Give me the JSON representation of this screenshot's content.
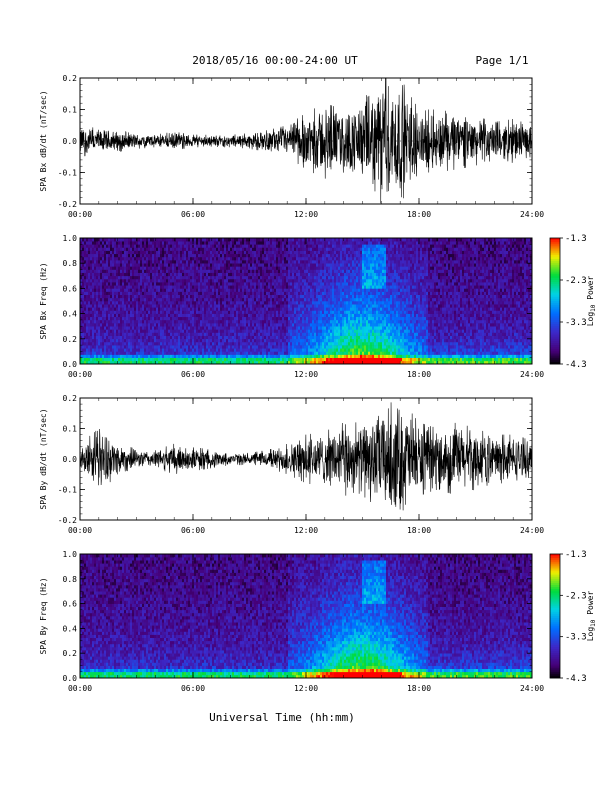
{
  "page": {
    "title": "2018/05/16  00:00-24:00 UT",
    "page_label": "Page 1/1",
    "xlabel": "Universal Time (hh:mm)"
  },
  "colorbar": {
    "label_base": "Log",
    "label_sub": "10",
    "label_tail": " Power",
    "ticks": [
      "-1.3",
      "-2.3",
      "-3.3",
      "-4.3"
    ],
    "range": [
      -4.3,
      -1.3
    ]
  },
  "chart_data": [
    {
      "type": "line",
      "ylabel": "SPA Bx dB/dt (nT/sec)",
      "xticks": [
        "00:00",
        "06:00",
        "12:00",
        "18:00",
        "24:00"
      ],
      "yticks": [
        "0.2",
        "0.1",
        "0.0",
        "-0.1",
        "-0.2"
      ],
      "xlim": [
        0,
        24
      ],
      "ylim": [
        -0.2,
        0.2
      ],
      "series": [
        {
          "x": [
            0,
            1,
            2,
            3,
            4,
            5,
            6,
            7,
            8,
            9,
            10,
            11,
            12,
            13,
            14,
            15,
            16,
            17,
            18,
            19,
            20,
            21,
            22,
            23,
            24
          ],
          "envelope": [
            0.05,
            0.04,
            0.035,
            0.025,
            0.02,
            0.03,
            0.02,
            0.02,
            0.02,
            0.025,
            0.035,
            0.05,
            0.09,
            0.12,
            0.1,
            0.13,
            0.2,
            0.2,
            0.1,
            0.1,
            0.09,
            0.08,
            0.06,
            0.07,
            0.05
          ]
        }
      ]
    },
    {
      "type": "heatmap",
      "ylabel": "SPA Bx Freq (Hz)",
      "xticks": [
        "00:00",
        "06:00",
        "12:00",
        "18:00",
        "24:00"
      ],
      "yticks": [
        "1.0",
        "0.8",
        "0.6",
        "0.4",
        "0.2",
        "0.0"
      ],
      "xlim": [
        0,
        24
      ],
      "ylim": [
        0,
        1.0
      ],
      "zlim": [
        -4.3,
        -1.3
      ]
    },
    {
      "type": "line",
      "ylabel": "SPA By dB/dt (nT/sec)",
      "xticks": [
        "00:00",
        "06:00",
        "12:00",
        "18:00",
        "24:00"
      ],
      "yticks": [
        "0.2",
        "0.1",
        "0.0",
        "-0.1",
        "-0.2"
      ],
      "xlim": [
        0,
        24
      ],
      "ylim": [
        -0.2,
        0.2
      ],
      "series": [
        {
          "x": [
            0,
            1,
            2,
            3,
            4,
            5,
            6,
            7,
            8,
            9,
            10,
            11,
            12,
            13,
            14,
            15,
            16,
            17,
            18,
            19,
            20,
            21,
            22,
            23,
            24
          ],
          "envelope": [
            0.05,
            0.1,
            0.06,
            0.03,
            0.03,
            0.05,
            0.04,
            0.03,
            0.02,
            0.02,
            0.03,
            0.05,
            0.08,
            0.09,
            0.12,
            0.12,
            0.17,
            0.2,
            0.12,
            0.1,
            0.12,
            0.1,
            0.08,
            0.08,
            0.06
          ]
        }
      ]
    },
    {
      "type": "heatmap",
      "ylabel": "SPA By Freq (Hz)",
      "xticks": [
        "00:00",
        "06:00",
        "12:00",
        "18:00",
        "24:00"
      ],
      "yticks": [
        "1.0",
        "0.8",
        "0.6",
        "0.4",
        "0.2",
        "0.0"
      ],
      "xlim": [
        0,
        24
      ],
      "ylim": [
        0,
        1.0
      ],
      "zlim": [
        -4.3,
        -1.3
      ]
    }
  ]
}
